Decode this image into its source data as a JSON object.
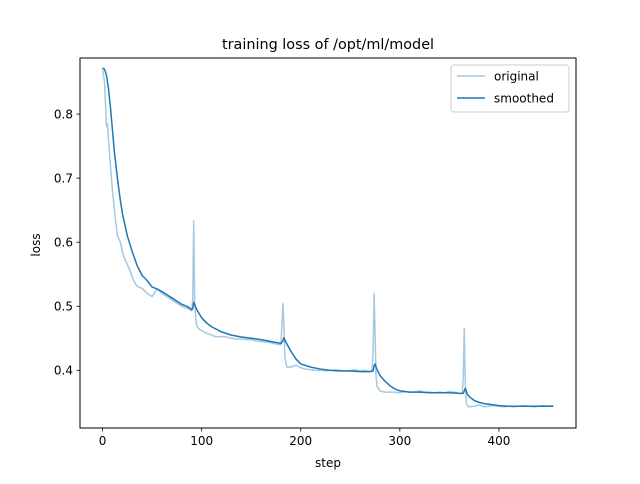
{
  "chart_data": {
    "type": "line",
    "title": "training loss of /opt/ml/model",
    "xlabel": "step",
    "ylabel": "loss",
    "xlim": [
      -22.75,
      477.75
    ],
    "ylim": [
      0.31,
      0.8875
    ],
    "xticks": [
      0,
      100,
      200,
      300,
      400
    ],
    "yticks": [
      0.4,
      0.5,
      0.6,
      0.7,
      0.8
    ],
    "xtick_labels": [
      "0",
      "100",
      "200",
      "300",
      "400"
    ],
    "ytick_labels": [
      "0.4",
      "0.5",
      "0.6",
      "0.7",
      "0.8"
    ],
    "grid": false,
    "legend_position": "top-right",
    "series": [
      {
        "name": "original",
        "color": "#a6c8e0",
        "x": [
          0,
          2,
          4,
          5,
          6,
          8,
          10,
          12,
          15,
          18,
          20,
          22,
          25,
          28,
          30,
          33,
          36,
          40,
          45,
          50,
          55,
          60,
          65,
          70,
          75,
          80,
          85,
          88,
          90,
          91,
          92,
          93,
          94,
          95,
          97,
          100,
          105,
          110,
          115,
          120,
          125,
          130,
          135,
          140,
          145,
          150,
          155,
          160,
          165,
          170,
          175,
          180,
          181,
          182,
          183,
          184,
          185,
          186,
          190,
          195,
          200,
          205,
          210,
          215,
          220,
          225,
          230,
          235,
          240,
          245,
          250,
          255,
          260,
          265,
          270,
          272,
          273,
          274,
          275,
          276,
          277,
          280,
          285,
          290,
          295,
          300,
          305,
          310,
          315,
          320,
          325,
          330,
          335,
          340,
          345,
          350,
          355,
          360,
          363,
          364,
          365,
          366,
          367,
          368,
          370,
          375,
          380,
          385,
          390,
          395,
          400,
          405,
          410,
          415,
          420,
          425,
          430,
          435,
          440,
          445,
          450,
          455
        ],
        "y": [
          0.87,
          0.85,
          0.78,
          0.785,
          0.76,
          0.72,
          0.68,
          0.65,
          0.61,
          0.6,
          0.585,
          0.575,
          0.565,
          0.555,
          0.545,
          0.535,
          0.53,
          0.528,
          0.52,
          0.515,
          0.527,
          0.52,
          0.515,
          0.51,
          0.505,
          0.5,
          0.497,
          0.495,
          0.493,
          0.51,
          0.633,
          0.505,
          0.48,
          0.47,
          0.465,
          0.462,
          0.458,
          0.455,
          0.452,
          0.453,
          0.452,
          0.45,
          0.449,
          0.449,
          0.448,
          0.448,
          0.446,
          0.445,
          0.444,
          0.443,
          0.441,
          0.44,
          0.47,
          0.504,
          0.47,
          0.42,
          0.412,
          0.405,
          0.405,
          0.408,
          0.404,
          0.402,
          0.401,
          0.4,
          0.4,
          0.399,
          0.4,
          0.401,
          0.4,
          0.399,
          0.4,
          0.401,
          0.399,
          0.4,
          0.398,
          0.4,
          0.43,
          0.52,
          0.46,
          0.39,
          0.375,
          0.368,
          0.366,
          0.366,
          0.366,
          0.365,
          0.367,
          0.366,
          0.366,
          0.368,
          0.366,
          0.366,
          0.365,
          0.366,
          0.365,
          0.367,
          0.366,
          0.364,
          0.364,
          0.39,
          0.465,
          0.38,
          0.35,
          0.345,
          0.343,
          0.344,
          0.346,
          0.343,
          0.344,
          0.345,
          0.344,
          0.343,
          0.344,
          0.343,
          0.344,
          0.345,
          0.344,
          0.343,
          0.344,
          0.345,
          0.344,
          0.345
        ]
      },
      {
        "name": "smoothed",
        "color": "#1f77b4",
        "x": [
          0,
          2,
          4,
          6,
          8,
          10,
          12,
          15,
          18,
          20,
          25,
          30,
          35,
          40,
          45,
          50,
          55,
          60,
          65,
          70,
          75,
          80,
          85,
          88,
          90,
          91,
          92,
          93,
          95,
          100,
          105,
          110,
          115,
          120,
          130,
          140,
          150,
          160,
          170,
          180,
          182,
          183,
          185,
          190,
          195,
          200,
          210,
          220,
          230,
          240,
          250,
          260,
          270,
          273,
          274,
          275,
          276,
          278,
          280,
          285,
          290,
          295,
          300,
          310,
          320,
          330,
          340,
          350,
          360,
          364,
          365,
          366,
          367,
          368,
          370,
          375,
          380,
          385,
          390,
          400,
          410,
          420,
          430,
          440,
          450,
          455
        ],
        "y": [
          0.872,
          0.87,
          0.86,
          0.84,
          0.81,
          0.775,
          0.74,
          0.7,
          0.665,
          0.645,
          0.61,
          0.585,
          0.563,
          0.548,
          0.54,
          0.53,
          0.527,
          0.523,
          0.518,
          0.513,
          0.508,
          0.503,
          0.5,
          0.497,
          0.495,
          0.496,
          0.506,
          0.503,
          0.495,
          0.482,
          0.474,
          0.468,
          0.464,
          0.46,
          0.455,
          0.452,
          0.45,
          0.448,
          0.445,
          0.442,
          0.446,
          0.451,
          0.444,
          0.43,
          0.418,
          0.41,
          0.405,
          0.402,
          0.4,
          0.399,
          0.399,
          0.398,
          0.398,
          0.399,
          0.407,
          0.41,
          0.405,
          0.398,
          0.392,
          0.383,
          0.376,
          0.371,
          0.368,
          0.366,
          0.366,
          0.365,
          0.365,
          0.365,
          0.364,
          0.364,
          0.368,
          0.372,
          0.368,
          0.363,
          0.359,
          0.353,
          0.35,
          0.348,
          0.347,
          0.345,
          0.344,
          0.344,
          0.344,
          0.344,
          0.344,
          0.344
        ]
      }
    ]
  }
}
